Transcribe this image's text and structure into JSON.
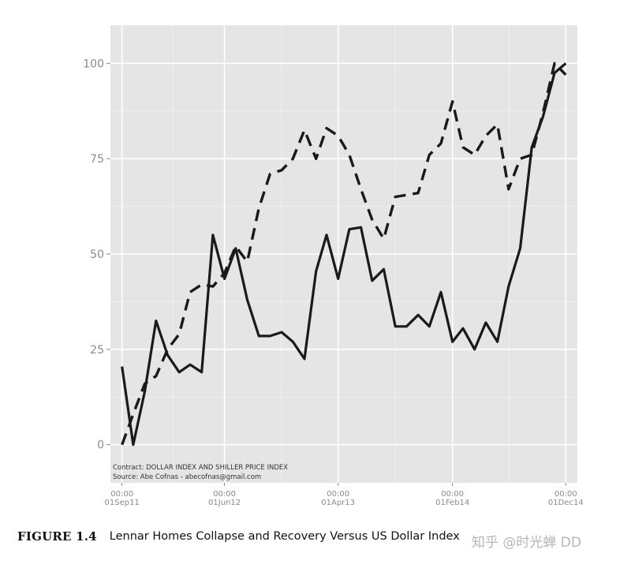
{
  "chart_data": {
    "type": "line",
    "x": [
      "2011-09-01",
      "2011-10-01",
      "2011-11-01",
      "2011-12-01",
      "2012-01-01",
      "2012-02-01",
      "2012-03-01",
      "2012-04-01",
      "2012-05-01",
      "2012-06-01",
      "2012-07-01",
      "2012-08-01",
      "2012-09-01",
      "2012-10-01",
      "2012-11-01",
      "2012-12-01",
      "2013-01-01",
      "2013-02-01",
      "2013-03-01",
      "2013-04-01",
      "2013-05-01",
      "2013-06-01",
      "2013-07-01",
      "2013-08-01",
      "2013-09-01",
      "2013-10-01",
      "2013-11-01",
      "2013-12-01",
      "2014-01-01",
      "2014-02-01",
      "2014-03-01",
      "2014-04-01",
      "2014-05-01",
      "2014-06-01",
      "2014-07-01",
      "2014-08-01",
      "2014-09-01",
      "2014-10-01",
      "2014-11-01",
      "2014-12-01"
    ],
    "series": [
      {
        "style": "solid",
        "values": [
          20.5,
          0,
          14,
          32.5,
          23.5,
          19,
          21,
          19,
          55,
          43.5,
          51.5,
          38,
          28.5,
          28.5,
          29.5,
          27,
          22.5,
          45.5,
          55,
          43.5,
          56.5,
          57,
          43,
          46,
          31,
          31,
          34,
          31,
          40,
          27,
          30.5,
          25,
          32,
          27,
          41.5,
          51.5,
          78,
          86,
          97.5,
          100
        ]
      },
      {
        "style": "dashed",
        "values": [
          0,
          8,
          16,
          18,
          25,
          29,
          40,
          42,
          41.5,
          45,
          52,
          48,
          62,
          71,
          72,
          75,
          82.5,
          75,
          83,
          81,
          76,
          67,
          59,
          54,
          65,
          65.5,
          66,
          76,
          79,
          90,
          78,
          76,
          81,
          84,
          67,
          75,
          76,
          87,
          100,
          97
        ]
      }
    ],
    "x_ticks": [
      {
        "date": "2011-09-01",
        "time": "00:00",
        "label": "01Sep11"
      },
      {
        "date": "2012-06-01",
        "time": "00:00",
        "label": "01Jun12"
      },
      {
        "date": "2013-04-01",
        "time": "00:00",
        "label": "01Apr13"
      },
      {
        "date": "2014-02-01",
        "time": "00:00",
        "label": "01Feb14"
      },
      {
        "date": "2014-12-01",
        "time": "00:00",
        "label": "01Dec14"
      }
    ],
    "y_ticks": [
      "0",
      "25",
      "50",
      "75",
      "100"
    ],
    "ylim": [
      -10,
      110
    ],
    "xlim": [
      "2011-08-01",
      "2015-01-01"
    ],
    "grid": true,
    "legend": "none",
    "annotations": [
      "Contract: DOLLAR INDEX AND SHILLER PRICE INDEX",
      "Source: Abe Cofnas - abecofnas@gmail.com"
    ],
    "colors": {
      "panel": "#e5e5e5",
      "grid_major": "#ffffff",
      "grid_minor": "#f0f0f0",
      "line": "#1a1a1a"
    }
  },
  "figure": {
    "label": "FIGURE 1.4",
    "caption": "Lennar Homes Collapse and Recovery Versus US Dollar Index"
  },
  "watermark": "知乎 @时光蝉 DD"
}
